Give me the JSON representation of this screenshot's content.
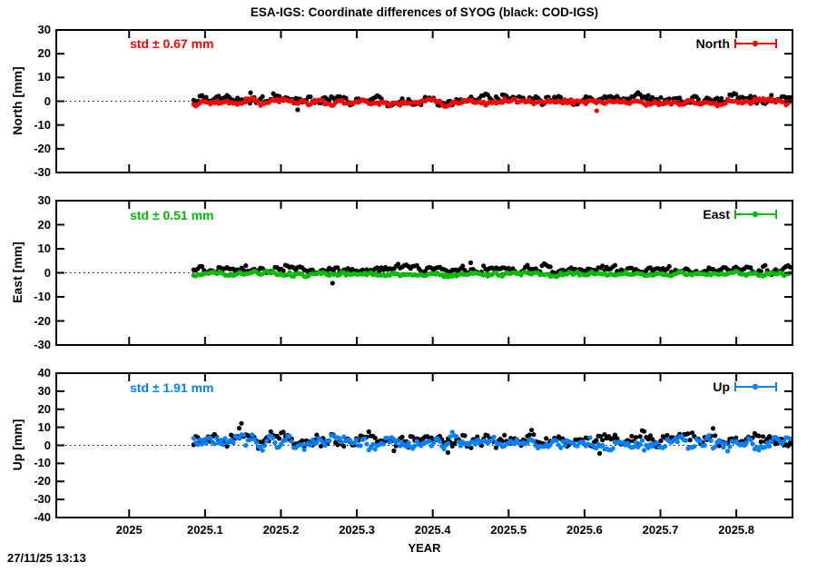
{
  "chart_data": {
    "type": "scatter",
    "title": "ESA-IGS: Coordinate differences of SYOG (black: COD-IGS)",
    "xlabel": "YEAR",
    "timestamp": "27/11/25 13:13",
    "xlim": [
      2024.904,
      2025.874
    ],
    "xticks": [
      2025,
      2025.1,
      2025.2,
      2025.3,
      2025.4,
      2025.5,
      2025.6,
      2025.7,
      2025.8
    ],
    "xtick_labels": [
      "2025",
      "2025.1",
      "2025.2",
      "2025.3",
      "2025.4",
      "2025.5",
      "2025.6",
      "2025.7",
      "2025.8"
    ],
    "x_data_start": 2025.085,
    "x_data_end": 2025.871,
    "points_per_series": 287,
    "grid": "dotted-zero-line-only",
    "legend_position": "top-right-inside",
    "panels": [
      {
        "name": "North",
        "ylabel": "North [mm]",
        "ylim": [
          -30,
          30
        ],
        "yticks": [
          30,
          20,
          10,
          0,
          -10,
          -20,
          -30
        ],
        "std_label": "std ± 0.67 mm",
        "std_mm": 0.67,
        "legend_label": "North",
        "color": "#ff0000",
        "series": [
          {
            "name": "COD-IGS",
            "color": "#000000",
            "mean_mm": 0.7,
            "std_mm": 1.0,
            "outliers": [
              [
                2025.16,
                3.6
              ],
              [
                2025.19,
                3.2
              ],
              [
                2025.222,
                -3.6
              ]
            ]
          },
          {
            "name": "ESA-IGS",
            "color": "#ff0000",
            "mean_mm": -0.35,
            "std_mm": 0.67,
            "outliers": [
              [
                2025.616,
                -4.0
              ]
            ]
          }
        ]
      },
      {
        "name": "East",
        "ylabel": "East [mm]",
        "ylim": [
          -30,
          30
        ],
        "yticks": [
          30,
          20,
          10,
          0,
          -10,
          -20,
          -30
        ],
        "std_label": "std ± 0.51 mm",
        "std_mm": 0.51,
        "legend_label": "East",
        "color": "#00bb00",
        "series": [
          {
            "name": "COD-IGS",
            "color": "#000000",
            "mean_mm": 1.3,
            "std_mm": 0.85,
            "outliers": [
              [
                2025.268,
                -4.3
              ],
              [
                2025.45,
                4.2
              ]
            ]
          },
          {
            "name": "ESA-IGS",
            "color": "#00bb00",
            "mean_mm": -0.5,
            "std_mm": 0.51,
            "outliers": []
          }
        ]
      },
      {
        "name": "Up",
        "ylabel": "Up [mm]",
        "ylim": [
          -40,
          40
        ],
        "yticks": [
          40,
          30,
          20,
          10,
          0,
          -10,
          -20,
          -30,
          -40
        ],
        "std_label": "std ± 1.91 mm",
        "std_mm": 1.91,
        "legend_label": "Up",
        "color": "#0080ff",
        "series": [
          {
            "name": "COD-IGS",
            "color": "#000000",
            "mean_mm": 3.0,
            "std_mm": 2.2,
            "outliers": [
              [
                2025.145,
                9.5
              ],
              [
                2025.148,
                12.2
              ],
              [
                2025.42,
                -4.0
              ],
              [
                2025.62,
                -4.5
              ]
            ]
          },
          {
            "name": "ESA-IGS",
            "color": "#0080ff",
            "mean_mm": 1.4,
            "std_mm": 1.91,
            "outliers": []
          }
        ]
      }
    ]
  }
}
